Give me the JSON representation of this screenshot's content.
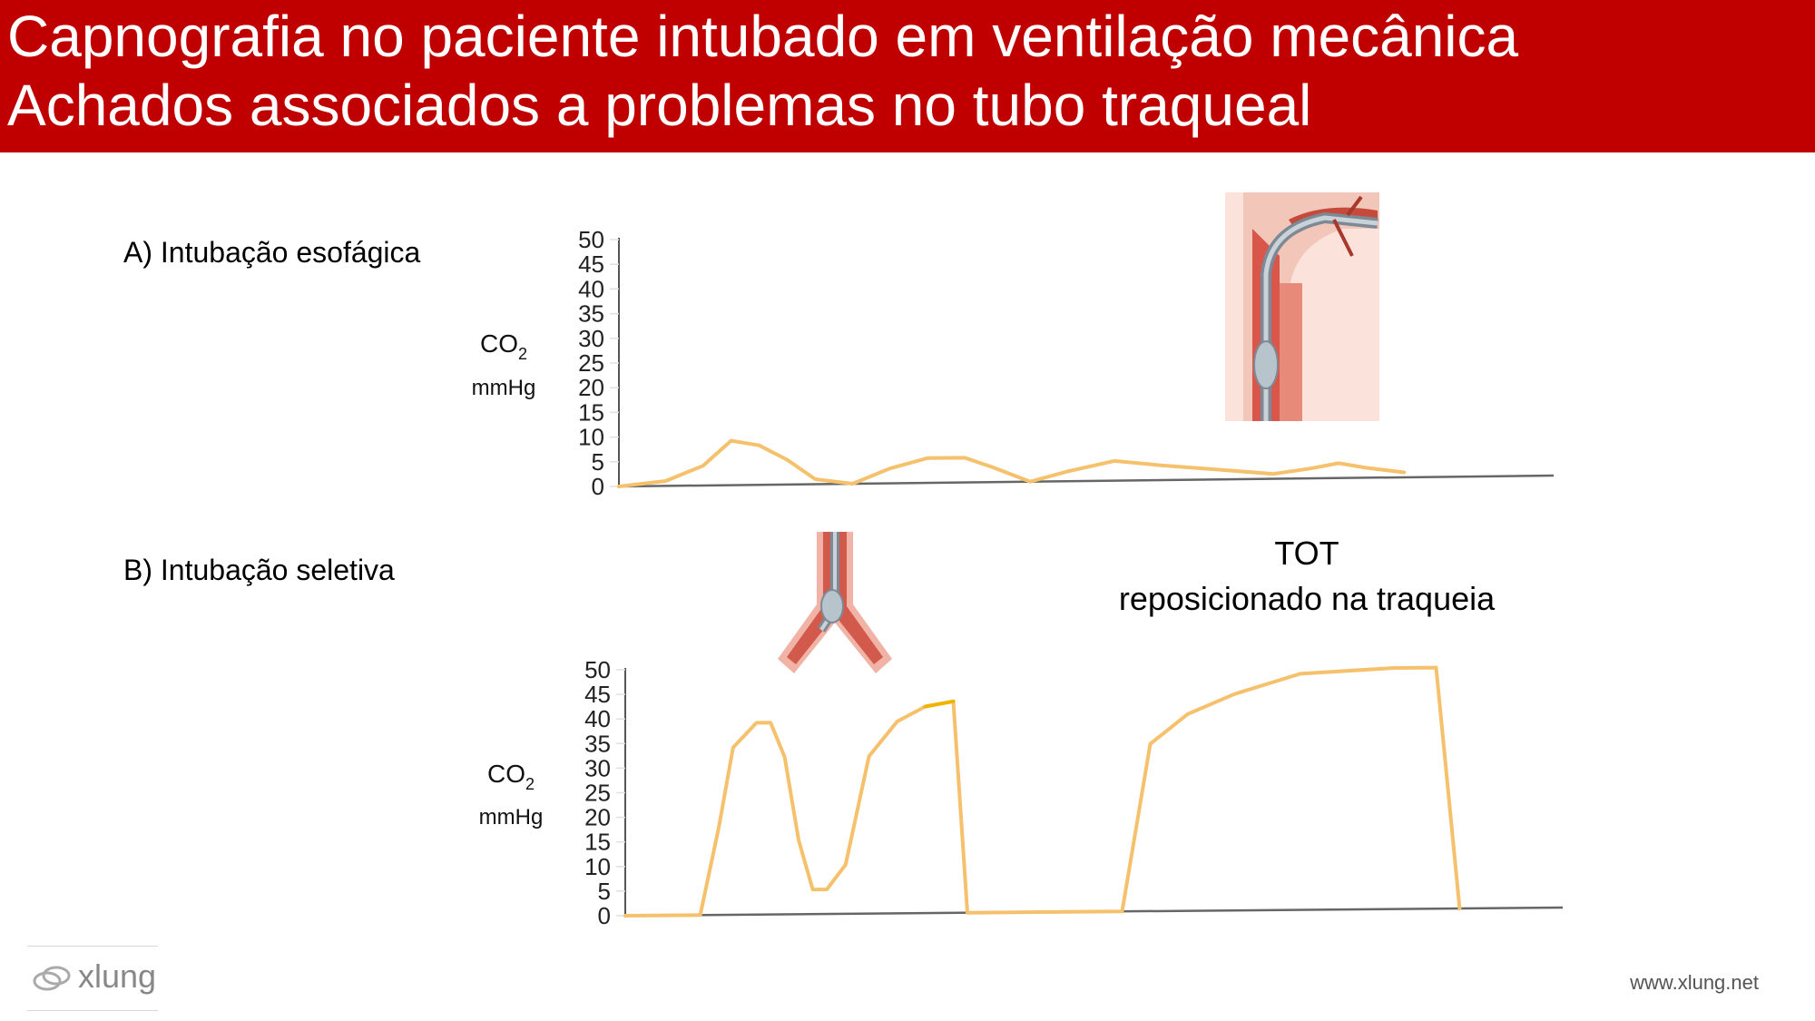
{
  "header": {
    "title_line1": "Capnografia no paciente intubado em ventilação mecânica",
    "title_line2": "Achados associados a problemas no tubo traqueal",
    "background": "#c00000"
  },
  "sections": {
    "a_label": "A) Intubação esofágica",
    "b_label": "B) Intubação seletiva",
    "tot_line1": "TOT",
    "tot_line2": "reposicionado na traqueia"
  },
  "chart_data": [
    {
      "type": "line",
      "title": "A) Intubação esofágica",
      "ylabel": "CO2 mmHg",
      "ylabel_main": "CO",
      "ylabel_sub": "2",
      "ylabel_unit": "mmHg",
      "yticks": [
        0,
        5,
        10,
        15,
        20,
        25,
        30,
        35,
        40,
        45,
        50
      ],
      "ylim": [
        0,
        50
      ],
      "grid": false,
      "line_color": "#f5c16c",
      "series": [
        {
          "values": [
            [
              0,
              0
            ],
            [
              0.05,
              1
            ],
            [
              0.09,
              4
            ],
            [
              0.12,
              9
            ],
            [
              0.15,
              8
            ],
            [
              0.18,
              5
            ],
            [
              0.21,
              1
            ],
            [
              0.25,
              0
            ],
            [
              0.29,
              3
            ],
            [
              0.33,
              5
            ],
            [
              0.37,
              5
            ],
            [
              0.4,
              3
            ],
            [
              0.44,
              0
            ],
            [
              0.48,
              2
            ],
            [
              0.53,
              4
            ],
            [
              0.58,
              3
            ],
            [
              0.64,
              2
            ],
            [
              0.7,
              1
            ],
            [
              0.74,
              2
            ],
            [
              0.77,
              3
            ],
            [
              0.8,
              2
            ],
            [
              0.84,
              1
            ]
          ]
        }
      ]
    },
    {
      "type": "line",
      "title": "B) Intubação seletiva",
      "ylabel": "CO2 mmHg",
      "ylabel_main": "CO",
      "ylabel_sub": "2",
      "ylabel_unit": "mmHg",
      "yticks": [
        0,
        5,
        10,
        15,
        20,
        25,
        30,
        35,
        40,
        45,
        50
      ],
      "ylim": [
        0,
        50
      ],
      "grid": false,
      "line_color": "#f5c16c",
      "accent_color": "#f0b400",
      "series": [
        {
          "values": [
            [
              0,
              0
            ],
            [
              0.08,
              0
            ],
            [
              0.1,
              18
            ],
            [
              0.115,
              34
            ],
            [
              0.14,
              39
            ],
            [
              0.155,
              39
            ],
            [
              0.17,
              32
            ],
            [
              0.185,
              15
            ],
            [
              0.2,
              5
            ],
            [
              0.215,
              5
            ],
            [
              0.235,
              10
            ],
            [
              0.26,
              32
            ],
            [
              0.29,
              39
            ],
            [
              0.32,
              42
            ],
            [
              0.35,
              43
            ],
            [
              0.365,
              0
            ],
            [
              0.53,
              0
            ],
            [
              0.56,
              34
            ],
            [
              0.6,
              40
            ],
            [
              0.65,
              44
            ],
            [
              0.72,
              48
            ],
            [
              0.82,
              49
            ],
            [
              0.865,
              49
            ],
            [
              0.89,
              0
            ]
          ]
        }
      ]
    }
  ],
  "footer": {
    "url": "www.xlung.net",
    "logo_text": "xlung"
  }
}
